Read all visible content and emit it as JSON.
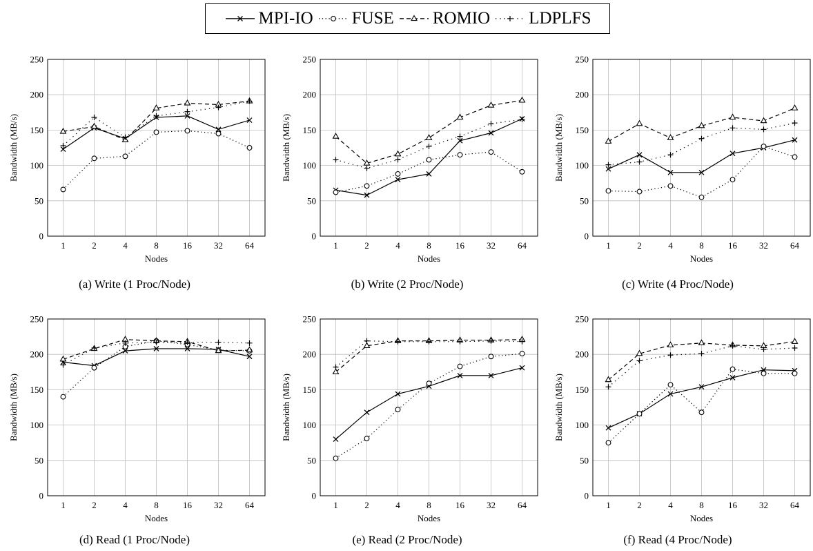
{
  "legend": [
    {
      "name": "MPI-IO",
      "marker": "x",
      "dash": ""
    },
    {
      "name": "FUSE",
      "marker": "circle",
      "dash": "1.3,3.5"
    },
    {
      "name": "ROMIO",
      "marker": "triangle",
      "dash": "6,4"
    },
    {
      "name": "LDPLFS",
      "marker": "plus",
      "dash": "1.3,5"
    }
  ],
  "chart_data": [
    {
      "type": "line",
      "caption": "(a) Write (1 Proc/Node)",
      "xlabel": "Nodes",
      "ylabel": "Bandwidth (MB/s)",
      "categories": [
        "1",
        "2",
        "4",
        "8",
        "16",
        "32",
        "64"
      ],
      "ylim": [
        0,
        250
      ],
      "yticks": [
        0,
        50,
        100,
        150,
        200,
        250
      ],
      "grid": true,
      "series": [
        {
          "name": "MPI-IO",
          "values": [
            123,
            153,
            138,
            168,
            170,
            151,
            164
          ]
        },
        {
          "name": "FUSE",
          "values": [
            66,
            110,
            113,
            147,
            149,
            145,
            125
          ]
        },
        {
          "name": "ROMIO",
          "values": [
            148,
            155,
            136,
            181,
            188,
            186,
            191
          ]
        },
        {
          "name": "LDPLFS",
          "values": [
            128,
            168,
            140,
            170,
            176,
            182,
            191
          ]
        }
      ]
    },
    {
      "type": "line",
      "caption": "(b) Write (2 Proc/Node)",
      "xlabel": "Nodes",
      "ylabel": "Bandwidth (MB/s)",
      "categories": [
        "1",
        "2",
        "4",
        "8",
        "16",
        "32",
        "64"
      ],
      "ylim": [
        0,
        250
      ],
      "yticks": [
        0,
        50,
        100,
        150,
        200,
        250
      ],
      "grid": true,
      "series": [
        {
          "name": "MPI-IO",
          "values": [
            65,
            58,
            80,
            88,
            135,
            146,
            166
          ]
        },
        {
          "name": "FUSE",
          "values": [
            62,
            71,
            88,
            108,
            115,
            119,
            91
          ]
        },
        {
          "name": "ROMIO",
          "values": [
            141,
            103,
            116,
            139,
            168,
            185,
            192
          ]
        },
        {
          "name": "LDPLFS",
          "values": [
            108,
            96,
            108,
            127,
            141,
            159,
            165
          ]
        }
      ]
    },
    {
      "type": "line",
      "caption": "(c) Write (4 Proc/Node)",
      "xlabel": "Nodes",
      "ylabel": "Bandwidth (MB/s)",
      "categories": [
        "1",
        "2",
        "4",
        "8",
        "16",
        "32",
        "64"
      ],
      "ylim": [
        0,
        250
      ],
      "yticks": [
        0,
        50,
        100,
        150,
        200,
        250
      ],
      "grid": true,
      "series": [
        {
          "name": "MPI-IO",
          "values": [
            95,
            115,
            90,
            90,
            117,
            125,
            136
          ]
        },
        {
          "name": "FUSE",
          "values": [
            64,
            63,
            71,
            55,
            80,
            127,
            112
          ]
        },
        {
          "name": "ROMIO",
          "values": [
            134,
            159,
            139,
            156,
            168,
            163,
            181
          ]
        },
        {
          "name": "LDPLFS",
          "values": [
            101,
            105,
            115,
            138,
            153,
            151,
            160
          ]
        }
      ]
    },
    {
      "type": "line",
      "caption": "(d) Read (1 Proc/Node)",
      "xlabel": "Nodes",
      "ylabel": "Bandwidth (MB/s)",
      "categories": [
        "1",
        "2",
        "4",
        "8",
        "16",
        "32",
        "64"
      ],
      "ylim": [
        0,
        250
      ],
      "yticks": [
        0,
        50,
        100,
        150,
        200,
        250
      ],
      "grid": true,
      "series": [
        {
          "name": "MPI-IO",
          "values": [
            189,
            184,
            205,
            208,
            208,
            207,
            197
          ]
        },
        {
          "name": "FUSE",
          "values": [
            140,
            181,
            211,
            219,
            214,
            206,
            205
          ]
        },
        {
          "name": "ROMIO",
          "values": [
            193,
            208,
            221,
            219,
            218,
            205,
            206
          ]
        },
        {
          "name": "LDPLFS",
          "values": [
            185,
            209,
            216,
            217,
            217,
            217,
            216
          ]
        }
      ]
    },
    {
      "type": "line",
      "caption": "(e) Read (2 Proc/Node)",
      "xlabel": "Nodes",
      "ylabel": "Bandwidth (MB/s)",
      "categories": [
        "1",
        "2",
        "4",
        "8",
        "16",
        "32",
        "64"
      ],
      "ylim": [
        0,
        250
      ],
      "yticks": [
        0,
        50,
        100,
        150,
        200,
        250
      ],
      "grid": true,
      "series": [
        {
          "name": "MPI-IO",
          "values": [
            80,
            118,
            144,
            155,
            170,
            170,
            181
          ]
        },
        {
          "name": "FUSE",
          "values": [
            53,
            81,
            122,
            159,
            183,
            197,
            201
          ]
        },
        {
          "name": "ROMIO",
          "values": [
            175,
            212,
            219,
            219,
            220,
            220,
            221
          ]
        },
        {
          "name": "LDPLFS",
          "values": [
            182,
            219,
            218,
            218,
            218,
            219,
            218
          ]
        }
      ]
    },
    {
      "type": "line",
      "caption": "(f) Read (4 Proc/Node)",
      "xlabel": "Nodes",
      "ylabel": "Bandwidth (MB/s)",
      "categories": [
        "1",
        "2",
        "4",
        "8",
        "16",
        "32",
        "64"
      ],
      "ylim": [
        0,
        250
      ],
      "yticks": [
        0,
        50,
        100,
        150,
        200,
        250
      ],
      "grid": true,
      "series": [
        {
          "name": "MPI-IO",
          "values": [
            96,
            116,
            144,
            154,
            167,
            178,
            177
          ]
        },
        {
          "name": "FUSE",
          "values": [
            75,
            116,
            157,
            118,
            179,
            173,
            173
          ]
        },
        {
          "name": "ROMIO",
          "values": [
            164,
            201,
            213,
            216,
            213,
            212,
            218
          ]
        },
        {
          "name": "LDPLFS",
          "values": [
            154,
            191,
            199,
            201,
            212,
            207,
            209
          ]
        }
      ]
    }
  ]
}
